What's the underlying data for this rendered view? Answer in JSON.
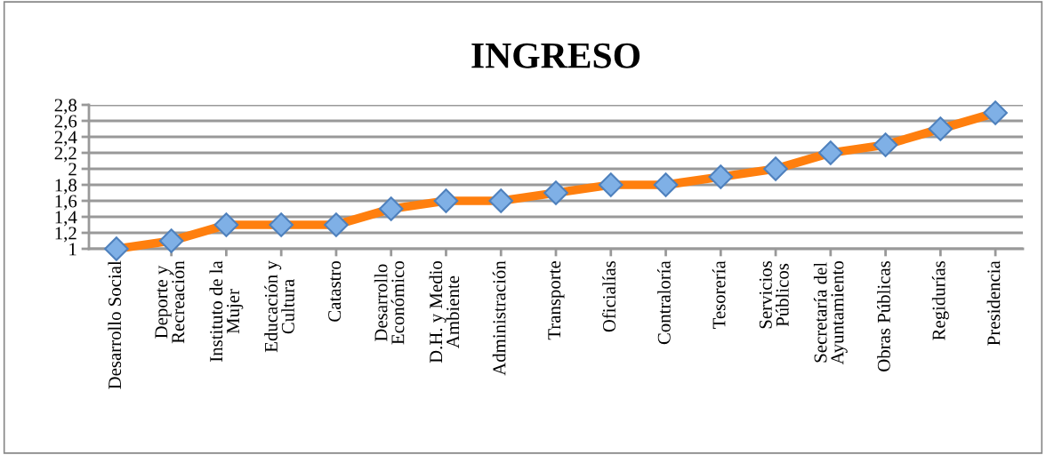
{
  "chart_data": {
    "type": "line",
    "title": "INGRESO",
    "categories": [
      "Desarrollo Social",
      "Deporte y\nRecreación",
      "Instituto de la\nMujer",
      "Educación y\nCultura",
      "Catastro",
      "Desarrollo\nEconómico",
      "D.H. y Medio\nAmbiente",
      "Administración",
      "Transporte",
      "Oficialías",
      "Contraloría",
      "Tesorería",
      "Servicios\nPúblicos",
      "Secretaría del\nAyuntamiento",
      "Obras Públicas",
      "Regidurías",
      "Presidencia"
    ],
    "series": [
      {
        "color": "#ff7f0e",
        "values": [
          1.0,
          1.1,
          1.3,
          1.3,
          1.3,
          1.5,
          1.6,
          1.6,
          1.7,
          1.8,
          1.8,
          1.9,
          2.0,
          2.2,
          2.3,
          2.5,
          2.7
        ]
      }
    ],
    "ylim": [
      1,
      2.8
    ],
    "yticks": [
      1,
      {
        "value": 1.2,
        "label": "1,2"
      },
      {
        "value": 1.4,
        "label": "1,4"
      },
      {
        "value": 1.6,
        "label": "1,6"
      },
      {
        "value": 1.8,
        "label": "1,8"
      },
      2,
      {
        "value": 2.2,
        "label": "2,2"
      },
      {
        "value": 2.4,
        "label": "2,4"
      },
      {
        "value": 2.6,
        "label": "2,6"
      },
      {
        "value": 2.8,
        "label": "2,8"
      }
    ],
    "grid": "y",
    "marker": "diamond",
    "line_style": "solid",
    "legend": false
  }
}
